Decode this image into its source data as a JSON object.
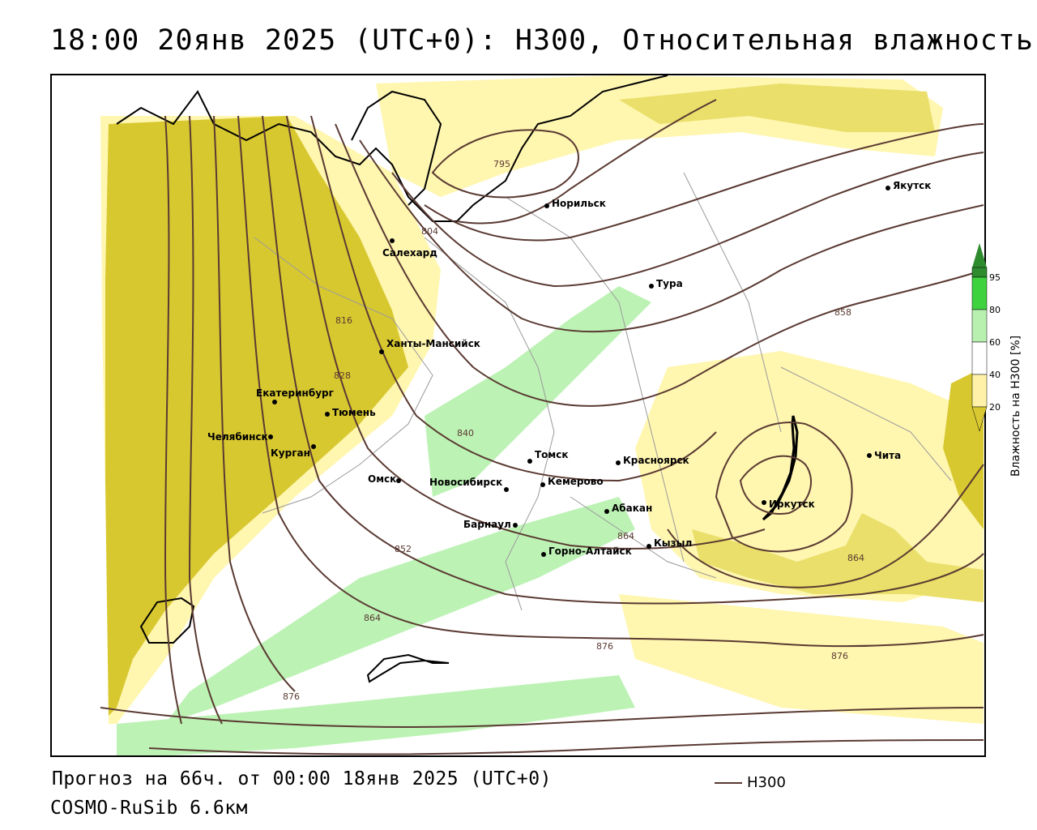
{
  "header": {
    "title": "18:00 20янв 2025 (UTC+0): H300, Относительная влажность"
  },
  "footer": {
    "forecast": "Прогноз на 66ч. от 00:00 18янв 2025 (UTC+0)",
    "model": "COSMO-RuSib 6.6км",
    "legend_line_label": "H300"
  },
  "colorbar": {
    "title": "Влажность на H300 [%]",
    "ticks": [
      "95",
      "80",
      "60",
      "40",
      "20"
    ],
    "colors": {
      "c95": "#2e8b2e",
      "c80": "#3fd23f",
      "c60": "#b8f0b0",
      "c40": "#ffffff",
      "c20": "#fff2a8",
      "c10": "#d9c832"
    }
  },
  "colors": {
    "isoline": "#5a3a32",
    "yellow_light": "#fff6b0",
    "yellow_mid": "#e9df6a",
    "olive": "#d8c830",
    "green_light": "#bdf2b5",
    "border": "#000000",
    "region_border": "#9a9a9a"
  },
  "isolines": {
    "labels": [
      "795",
      "804",
      "816",
      "828",
      "840",
      "852",
      "864",
      "864",
      "858",
      "864",
      "876",
      "876",
      "876"
    ]
  },
  "cities": [
    {
      "name": "Якутск"
    },
    {
      "name": "Норильск"
    },
    {
      "name": "Салехард"
    },
    {
      "name": "Тура"
    },
    {
      "name": "Ханты-Мансийск"
    },
    {
      "name": "Екатеринбург"
    },
    {
      "name": "Тюмень"
    },
    {
      "name": "Челябинск"
    },
    {
      "name": "Курган"
    },
    {
      "name": "Омск"
    },
    {
      "name": "Новосибирск"
    },
    {
      "name": "Томск"
    },
    {
      "name": "Кемерово"
    },
    {
      "name": "Красноярск"
    },
    {
      "name": "Барнаул"
    },
    {
      "name": "Абакан"
    },
    {
      "name": "Горно-Алтайск"
    },
    {
      "name": "Кызыл"
    },
    {
      "name": "Иркутск"
    },
    {
      "name": "Чита"
    }
  ]
}
